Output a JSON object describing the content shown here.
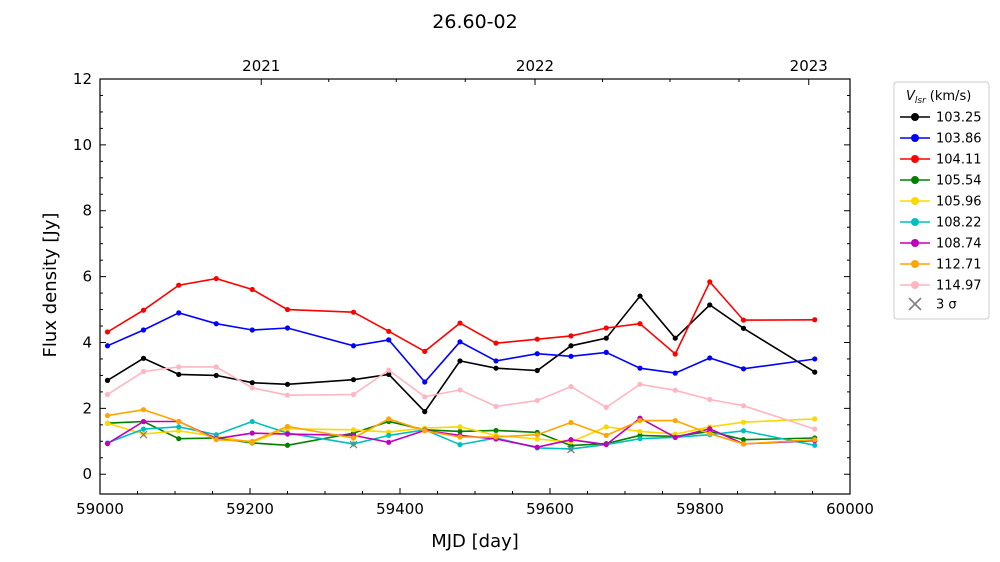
{
  "chart_data": {
    "type": "line",
    "title": "26.60-02",
    "xlabel": "MJD [day]",
    "ylabel": "Flux density [Jy]",
    "xlim": [
      59000,
      60000
    ],
    "ylim": [
      -0.6,
      12
    ],
    "x_ticks": [
      59000,
      59200,
      59400,
      59600,
      59800,
      60000
    ],
    "y_ticks": [
      0,
      2,
      4,
      6,
      8,
      10,
      12
    ],
    "top_axis": {
      "ticks": [
        {
          "label": "2021",
          "mjd": 59215
        },
        {
          "label": "2022",
          "mjd": 59580
        },
        {
          "label": "2023",
          "mjd": 59945
        }
      ]
    },
    "grid": false,
    "legend": {
      "position": "outside-right",
      "title_main": "V",
      "title_sub": "lsr",
      "title_unit": "(km/s)",
      "sigma_label": "3 σ",
      "sigma_color": "#808080"
    },
    "series": [
      {
        "name": "103.25",
        "color": "#000000",
        "x": [
          59010,
          59058,
          59105,
          59155,
          59203,
          59250,
          59338,
          59385,
          59433,
          59480,
          59528,
          59583,
          59628,
          59675,
          59720,
          59767,
          59813,
          59858,
          59953
        ],
        "y": [
          2.85,
          3.52,
          3.03,
          3.0,
          2.78,
          2.73,
          2.87,
          3.03,
          1.9,
          3.44,
          3.22,
          3.15,
          3.9,
          4.13,
          5.41,
          4.13,
          5.14,
          4.43,
          3.1
        ]
      },
      {
        "name": "103.86",
        "color": "#0000ff",
        "x": [
          59010,
          59058,
          59105,
          59155,
          59203,
          59250,
          59338,
          59385,
          59433,
          59480,
          59528,
          59583,
          59628,
          59675,
          59720,
          59767,
          59813,
          59858,
          59953
        ],
        "y": [
          3.9,
          4.38,
          4.9,
          4.57,
          4.38,
          4.44,
          3.9,
          4.08,
          2.8,
          4.02,
          3.44,
          3.66,
          3.58,
          3.7,
          3.22,
          3.07,
          3.53,
          3.2,
          3.5
        ]
      },
      {
        "name": "104.11",
        "color": "#ff0000",
        "x": [
          59010,
          59058,
          59105,
          59155,
          59203,
          59250,
          59338,
          59385,
          59433,
          59480,
          59528,
          59583,
          59628,
          59675,
          59720,
          59767,
          59813,
          59858,
          59953
        ],
        "y": [
          4.32,
          4.98,
          5.74,
          5.94,
          5.61,
          5.0,
          4.92,
          4.34,
          3.73,
          4.59,
          3.98,
          4.1,
          4.2,
          4.44,
          4.57,
          3.65,
          5.84,
          4.68,
          4.69
        ]
      },
      {
        "name": "105.54",
        "color": "#008000",
        "x": [
          59010,
          59058,
          59105,
          59155,
          59203,
          59250,
          59338,
          59385,
          59433,
          59480,
          59528,
          59583,
          59628,
          59675,
          59720,
          59767,
          59813,
          59858,
          59953
        ],
        "y": [
          1.55,
          1.6,
          1.08,
          1.1,
          0.95,
          0.88,
          1.25,
          1.6,
          1.35,
          1.3,
          1.33,
          1.27,
          0.87,
          0.93,
          1.18,
          1.15,
          1.3,
          1.05,
          1.1
        ]
      },
      {
        "name": "105.96",
        "color": "#ffd700",
        "x": [
          59010,
          59058,
          59105,
          59155,
          59203,
          59250,
          59338,
          59385,
          59433,
          59480,
          59528,
          59583,
          59628,
          59675,
          59720,
          59767,
          59813,
          59858,
          59953
        ],
        "y": [
          1.55,
          1.22,
          1.32,
          1.15,
          0.97,
          1.38,
          1.35,
          1.28,
          1.4,
          1.44,
          1.18,
          1.07,
          0.98,
          1.44,
          1.3,
          1.22,
          1.44,
          1.58,
          1.68
        ]
      },
      {
        "name": "108.22",
        "color": "#00bfbf",
        "x": [
          59010,
          59058,
          59105,
          59155,
          59203,
          59250,
          59338,
          59385,
          59433,
          59480,
          59528,
          59583,
          59628,
          59675,
          59720,
          59767,
          59813,
          59858,
          59953
        ],
        "y": [
          0.95,
          1.37,
          1.44,
          1.2,
          1.6,
          1.25,
          0.92,
          1.18,
          1.35,
          0.9,
          1.1,
          0.8,
          0.77,
          0.9,
          1.08,
          1.12,
          1.2,
          1.32,
          0.88
        ]
      },
      {
        "name": "108.74",
        "color": "#bf00bf",
        "x": [
          59010,
          59058,
          59105,
          59155,
          59203,
          59250,
          59338,
          59385,
          59433,
          59480,
          59528,
          59583,
          59628,
          59675,
          59720,
          59767,
          59813,
          59858,
          59953
        ],
        "y": [
          0.93,
          1.6,
          1.6,
          1.08,
          1.25,
          1.22,
          1.18,
          0.97,
          1.33,
          1.18,
          1.07,
          0.82,
          1.05,
          0.9,
          1.7,
          1.12,
          1.38,
          0.92,
          1.02
        ]
      },
      {
        "name": "112.71",
        "color": "#ffa500",
        "x": [
          59010,
          59058,
          59105,
          59155,
          59203,
          59250,
          59338,
          59385,
          59433,
          59480,
          59528,
          59583,
          59628,
          59675,
          59720,
          59767,
          59813,
          59858,
          59953
        ],
        "y": [
          1.78,
          1.96,
          1.6,
          1.05,
          1.0,
          1.45,
          1.1,
          1.68,
          1.32,
          1.13,
          1.13,
          1.2,
          1.57,
          1.18,
          1.63,
          1.63,
          1.23,
          0.92,
          1.05
        ]
      },
      {
        "name": "114.97",
        "color": "#ffb6c1",
        "x": [
          59010,
          59058,
          59105,
          59155,
          59203,
          59250,
          59338,
          59385,
          59433,
          59480,
          59528,
          59583,
          59628,
          59675,
          59720,
          59767,
          59813,
          59858,
          59953
        ],
        "y": [
          2.42,
          3.12,
          3.26,
          3.26,
          2.62,
          2.4,
          2.42,
          3.16,
          2.35,
          2.56,
          2.06,
          2.24,
          2.66,
          2.03,
          2.73,
          2.55,
          2.27,
          2.08,
          1.37
        ]
      }
    ],
    "three_sigma_points": [
      {
        "x": 59058,
        "y": 1.2
      },
      {
        "x": 59338,
        "y": 0.9
      },
      {
        "x": 59628,
        "y": 0.75
      }
    ]
  }
}
